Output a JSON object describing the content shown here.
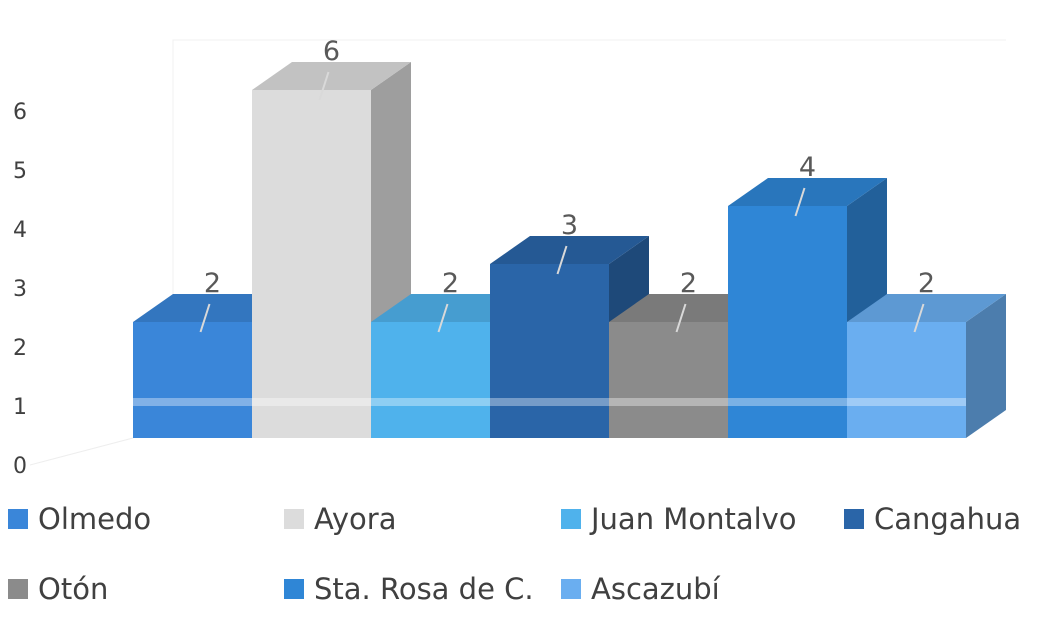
{
  "chart_data": {
    "type": "bar",
    "title": "",
    "xlabel": "",
    "ylabel": "",
    "ylim": [
      0,
      6
    ],
    "y_ticks": [
      0,
      1,
      2,
      3,
      4,
      5,
      6
    ],
    "categories": [
      "Olmedo",
      "Ayora",
      "Juan Montalvo",
      "Cangahua",
      "Otón",
      "Sta. Rosa de C.",
      "Ascazubí"
    ],
    "values": [
      2,
      6,
      2,
      3,
      2,
      4,
      2
    ],
    "colors": [
      "#3a86d9",
      "#dcdcdc",
      "#4fb2ec",
      "#2a65a8",
      "#8b8b8b",
      "#2f86d6",
      "#6aaef0"
    ],
    "data_labels": [
      "2",
      "6",
      "2",
      "3",
      "2",
      "4",
      "2"
    ],
    "style": "3d-column",
    "legend_position": "bottom",
    "grid": false
  }
}
